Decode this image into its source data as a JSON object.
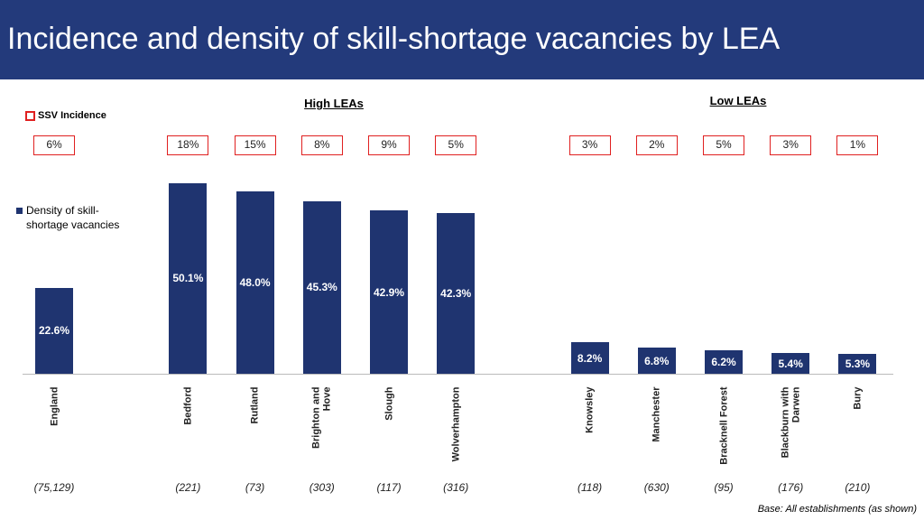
{
  "title": "Incidence and density of skill-shortage vacancies by LEA",
  "chart_data": {
    "type": "bar",
    "categories": [
      "England",
      null,
      "Bedford",
      "Rutland",
      "Brighton and Hove",
      "Slough",
      "Wolverhampton",
      null,
      "Knowsley",
      "Manchester",
      "Bracknell Forest",
      "Blackburn with Darwen",
      "Bury"
    ],
    "series": [
      {
        "name": "Density of skill-shortage vacancies",
        "color": "#1f3470",
        "values": [
          22.6,
          null,
          50.1,
          48.0,
          45.3,
          42.9,
          42.3,
          null,
          8.2,
          6.8,
          6.2,
          5.4,
          5.3
        ],
        "value_labels": [
          "22.6%",
          null,
          "50.1%",
          "48.0%",
          "45.3%",
          "42.9%",
          "42.3%",
          null,
          "8.2%",
          "6.8%",
          "6.2%",
          "5.4%",
          "5.3%"
        ]
      }
    ],
    "incidence": {
      "name": "SSV Incidence",
      "color": "#e02020",
      "values": [
        6,
        null,
        18,
        15,
        8,
        9,
        5,
        null,
        3,
        2,
        5,
        3,
        1
      ],
      "value_labels": [
        "6%",
        null,
        "18%",
        "15%",
        "8%",
        "9%",
        "5%",
        null,
        "3%",
        "2%",
        "5%",
        "3%",
        "1%"
      ]
    },
    "bases": [
      "(75,129)",
      null,
      "(221)",
      "(73)",
      "(303)",
      "(117)",
      "(316)",
      null,
      "(118)",
      "(630)",
      "(95)",
      "(176)",
      "(210)"
    ],
    "groups": [
      "High LEAs",
      "Low LEAs"
    ],
    "ylim": [
      0,
      55
    ]
  },
  "footnote": "Base: All establishments (as shown)"
}
